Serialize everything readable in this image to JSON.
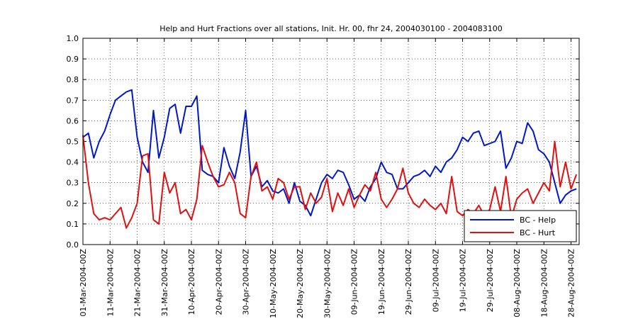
{
  "chart_data": {
    "type": "line",
    "title": "Help and Hurt Fractions over all stations, Init. Hr. 00, fhr 24, 2004030100 - 2004083100",
    "categories": [
      "01-Mar-2004-00Z",
      null,
      null,
      null,
      null,
      "11-Mar-2004-00Z",
      null,
      null,
      null,
      null,
      "21-Mar-2004-00Z",
      null,
      null,
      null,
      null,
      "31-Mar-2004-00Z",
      null,
      null,
      null,
      null,
      "10-Apr-2004-00Z",
      null,
      null,
      null,
      null,
      "20-Apr-2004-00Z",
      null,
      null,
      null,
      null,
      "30-Apr-2004-00Z",
      null,
      null,
      null,
      null,
      "10-May-2004-00Z",
      null,
      null,
      null,
      null,
      "20-May-2004-00Z",
      null,
      null,
      null,
      null,
      "30-May-2004-00Z",
      null,
      null,
      null,
      null,
      "09-Jun-2004-00Z",
      null,
      null,
      null,
      null,
      "19-Jun-2004-00Z",
      null,
      null,
      null,
      null,
      "29-Jun-2004-00Z",
      null,
      null,
      null,
      null,
      "09-Jul-2004-00Z",
      null,
      null,
      null,
      null,
      "19-Jul-2004-00Z",
      null,
      null,
      null,
      null,
      "29-Jul-2004-00Z",
      null,
      null,
      null,
      null,
      "08-Aug-2004-00Z",
      null,
      null,
      null,
      null,
      "18-Aug-2004-00Z",
      null,
      null,
      null,
      null,
      "28-Aug-2004-00Z",
      null
    ],
    "series": [
      {
        "name": "BC - Help",
        "color": "#0018c8",
        "values": [
          0.52,
          0.54,
          0.42,
          0.5,
          0.55,
          0.63,
          0.7,
          0.72,
          0.74,
          0.75,
          0.52,
          0.4,
          0.35,
          0.65,
          0.42,
          0.52,
          0.66,
          0.68,
          0.54,
          0.67,
          0.67,
          0.72,
          0.36,
          0.34,
          0.33,
          0.3,
          0.47,
          0.38,
          0.32,
          0.45,
          0.65,
          0.33,
          0.38,
          0.28,
          0.31,
          0.26,
          0.25,
          0.27,
          0.2,
          0.3,
          0.21,
          0.19,
          0.14,
          0.22,
          0.3,
          0.34,
          0.32,
          0.36,
          0.35,
          0.29,
          0.22,
          0.24,
          0.21,
          0.28,
          0.32,
          0.4,
          0.35,
          0.34,
          0.27,
          0.27,
          0.3,
          0.33,
          0.34,
          0.36,
          0.33,
          0.38,
          0.35,
          0.4,
          0.42,
          0.46,
          0.52,
          0.5,
          0.54,
          0.55,
          0.48,
          0.49,
          0.5,
          0.55,
          0.37,
          0.42,
          0.5,
          0.49,
          0.59,
          0.55,
          0.46,
          0.44,
          0.4,
          0.3,
          0.2,
          0.24,
          0.26,
          0.27
        ]
      },
      {
        "name": "BC - Hurt",
        "color": "#e01010",
        "values": [
          0.53,
          0.3,
          0.15,
          0.12,
          0.13,
          0.12,
          0.15,
          0.18,
          0.08,
          0.13,
          0.2,
          0.43,
          0.44,
          0.12,
          0.1,
          0.35,
          0.25,
          0.3,
          0.15,
          0.17,
          0.12,
          0.22,
          0.48,
          0.4,
          0.33,
          0.28,
          0.29,
          0.35,
          0.3,
          0.15,
          0.13,
          0.33,
          0.4,
          0.26,
          0.28,
          0.22,
          0.32,
          0.3,
          0.22,
          0.28,
          0.28,
          0.17,
          0.25,
          0.2,
          0.23,
          0.32,
          0.16,
          0.25,
          0.19,
          0.27,
          0.18,
          0.24,
          0.29,
          0.26,
          0.35,
          0.22,
          0.18,
          0.22,
          0.27,
          0.37,
          0.25,
          0.2,
          0.18,
          0.22,
          0.19,
          0.17,
          0.2,
          0.15,
          0.33,
          0.16,
          0.14,
          0.17,
          0.15,
          0.19,
          0.14,
          0.17,
          0.28,
          0.16,
          0.33,
          0.13,
          0.22,
          0.25,
          0.27,
          0.2,
          0.25,
          0.3,
          0.26,
          0.5,
          0.28,
          0.4,
          0.27,
          0.34
        ]
      }
    ],
    "ylim": [
      0,
      1
    ],
    "yticks": [
      {
        "value": 0,
        "label": "0.0"
      },
      0.1,
      0.2,
      0.3,
      0.4,
      0.5,
      0.6,
      0.7,
      0.8,
      0.9,
      {
        "value": 1,
        "label": "1.0"
      }
    ],
    "grid": true,
    "legend": "lower right"
  }
}
